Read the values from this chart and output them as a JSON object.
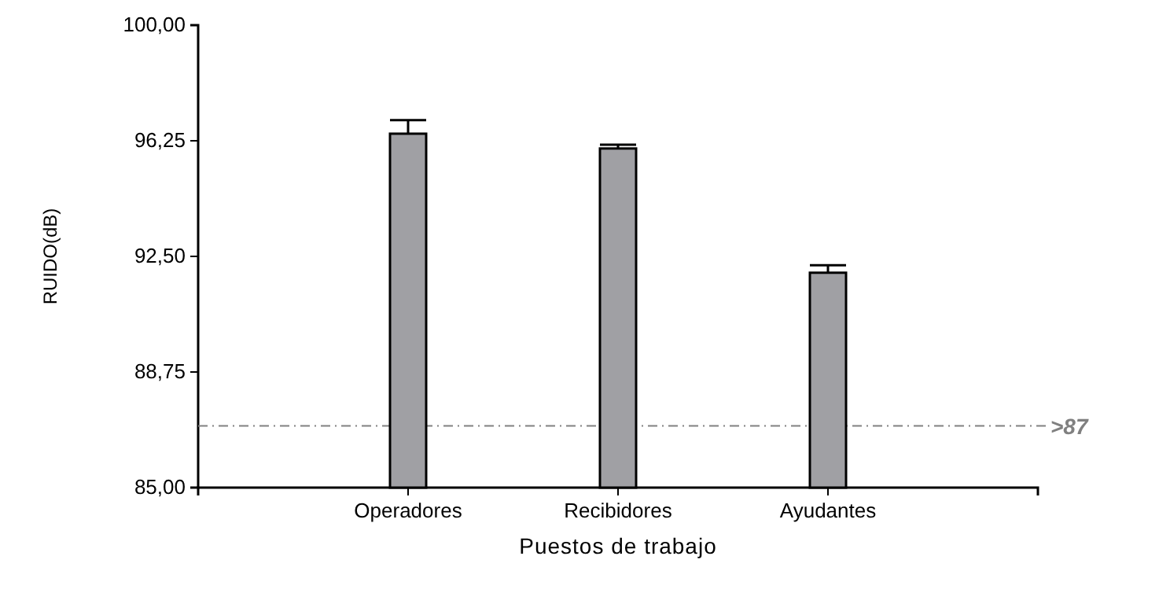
{
  "chart_data": {
    "type": "bar",
    "xlabel": "Puestos de trabajo",
    "ylabel": "RUIDO(dB)",
    "categories": [
      "Operadores",
      "Recibidores",
      "Ayudantes"
    ],
    "values": [
      96.48,
      96.0,
      91.97
    ],
    "errors": [
      0.44,
      0.12,
      0.24
    ],
    "color": "#a0a0a4",
    "ylim": [
      85,
      100
    ],
    "yticks": [
      {
        "value": 85,
        "label": "85,00"
      },
      {
        "value": 88.75,
        "label": "88,75"
      },
      {
        "value": 92.5,
        "label": "92,50"
      },
      {
        "value": 96.25,
        "label": "96,25"
      },
      {
        "value": 100,
        "label": "100,00"
      }
    ],
    "ref_lines": [
      {
        "axis": "y",
        "value": 87,
        "label": ">87",
        "color": "#808080",
        "line_style": "dashdot"
      }
    ],
    "grid": false
  }
}
